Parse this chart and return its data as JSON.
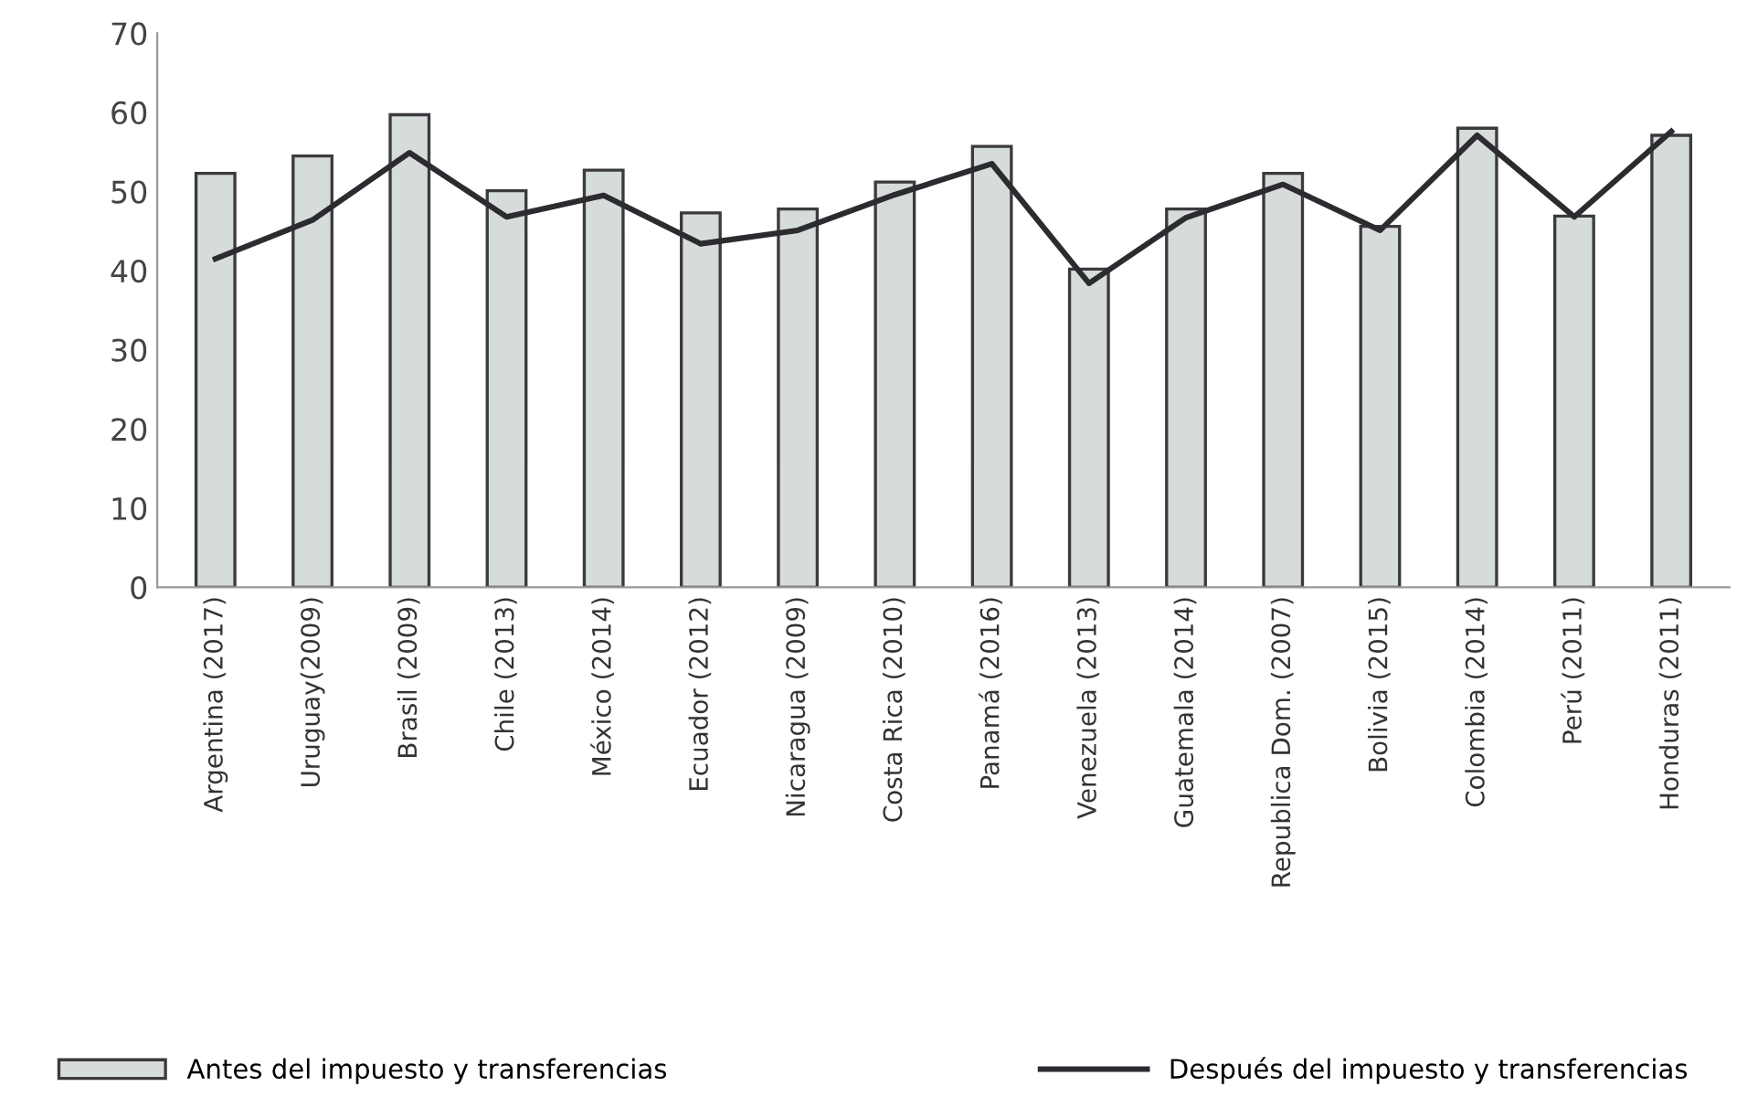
{
  "chart_data": {
    "type": "bar",
    "categories": [
      "Argentina (2017)",
      "Uruguay(2009)",
      "Brasil (2009)",
      "Chile (2013)",
      "México (2014)",
      "Ecuador (2012)",
      "Nicaragua (2009)",
      "Costa Rica (2010)",
      "Panamá (2016)",
      "Venezuela (2013)",
      "Guatemala (2014)",
      "Republica Dom. (2007)",
      "Bolivia (2015)",
      "Colombia (2014)",
      "Perú (2011)",
      "Honduras (2011)"
    ],
    "series": [
      {
        "name": "Antes del impuesto y transferencias",
        "color": "#d6dcd9",
        "values": [
          52.3,
          54.5,
          59.7,
          50.1,
          52.7,
          47.3,
          47.8,
          51.2,
          55.7,
          40.2,
          47.8,
          52.3,
          45.6,
          58.0,
          46.9,
          57.1
        ]
      },
      {
        "name": "Después del impuesto y transferencias",
        "type": "line",
        "color": "#2b2b30",
        "values": [
          41.5,
          46.4,
          54.9,
          46.8,
          49.5,
          43.4,
          45.1,
          49.6,
          53.5,
          38.4,
          46.7,
          50.9,
          45.1,
          57.1,
          46.8,
          57.6
        ]
      }
    ],
    "ylim": [
      0,
      70
    ],
    "yticks": [
      0,
      10,
      20,
      30,
      40,
      50,
      60,
      70
    ],
    "grid": false,
    "legend": "bottom",
    "marker": "none",
    "line_style": "solid"
  }
}
